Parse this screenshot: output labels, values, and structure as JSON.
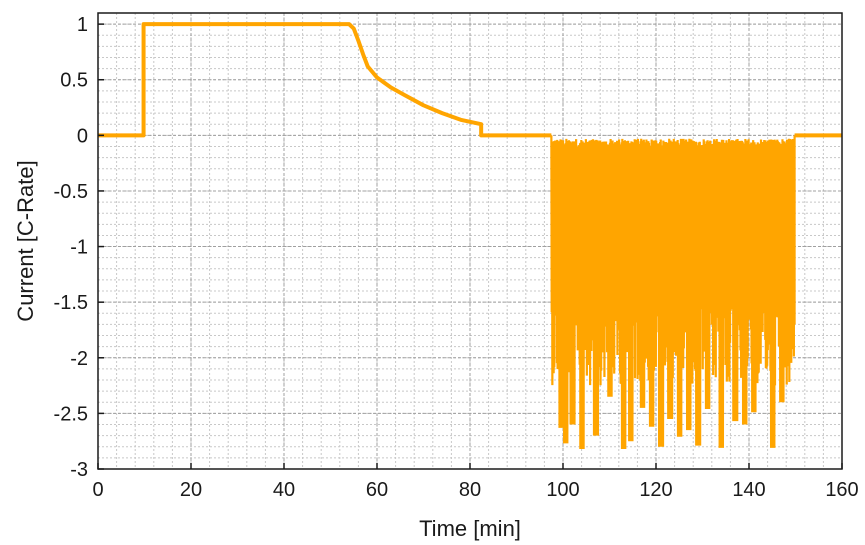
{
  "chart_data": {
    "type": "line",
    "title": "",
    "xlabel": "Time [min]",
    "ylabel": "Current [C-Rate]",
    "xlim": [
      0,
      160
    ],
    "ylim": [
      -3,
      1.1
    ],
    "x_ticks": [
      0,
      20,
      40,
      60,
      80,
      100,
      120,
      140,
      160
    ],
    "x_tick_labels": [
      "0",
      "20",
      "40",
      "60",
      "80",
      "100",
      "120",
      "140",
      "160"
    ],
    "y_ticks": [
      1,
      0.5,
      0,
      -0.5,
      -1,
      -1.5,
      -2,
      -2.5,
      -3
    ],
    "y_tick_labels": [
      "1",
      "0.5",
      "0",
      "-0.5",
      "-1",
      "-1.5",
      "-2",
      "-2.5",
      "-3"
    ],
    "grid": true,
    "minor_grid": true,
    "series_color": "#FFA500",
    "series": [
      {
        "name": "",
        "x": [
          0,
          9.8,
          9.8,
          54,
          55,
          56,
          57,
          58,
          60,
          63,
          66,
          70,
          74,
          78,
          82.4,
          82.4,
          83,
          97.5
        ],
        "y": [
          0,
          0,
          1,
          1,
          0.96,
          0.85,
          0.73,
          0.62,
          0.52,
          0.43,
          0.36,
          0.27,
          0.2,
          0.14,
          0.1,
          0,
          0,
          0
        ]
      }
    ],
    "oscillation_region": {
      "x_start": 97.5,
      "x_end": 149.8,
      "upper": -0.07,
      "lower_min": -2.83,
      "deep_dips": [
        {
          "x": 99.5,
          "y": -2.63
        },
        {
          "x": 100.5,
          "y": -2.77
        },
        {
          "x": 102,
          "y": -2.6
        },
        {
          "x": 104,
          "y": -2.82
        },
        {
          "x": 107,
          "y": -2.7
        },
        {
          "x": 110,
          "y": -2.35
        },
        {
          "x": 113,
          "y": -2.82
        },
        {
          "x": 114.5,
          "y": -2.75
        },
        {
          "x": 117,
          "y": -2.45
        },
        {
          "x": 119,
          "y": -2.62
        },
        {
          "x": 121,
          "y": -2.8
        },
        {
          "x": 123,
          "y": -2.55
        },
        {
          "x": 125,
          "y": -2.71
        },
        {
          "x": 127,
          "y": -2.65
        },
        {
          "x": 129,
          "y": -2.79
        },
        {
          "x": 131,
          "y": -2.46
        },
        {
          "x": 134,
          "y": -2.81
        },
        {
          "x": 137,
          "y": -2.57
        },
        {
          "x": 139,
          "y": -2.6
        },
        {
          "x": 141,
          "y": -2.49
        },
        {
          "x": 145,
          "y": -2.81
        },
        {
          "x": 147,
          "y": -2.4
        }
      ],
      "end_value": 0
    },
    "tail": {
      "x": [
        149.8,
        160
      ],
      "y": [
        0,
        0
      ]
    }
  }
}
